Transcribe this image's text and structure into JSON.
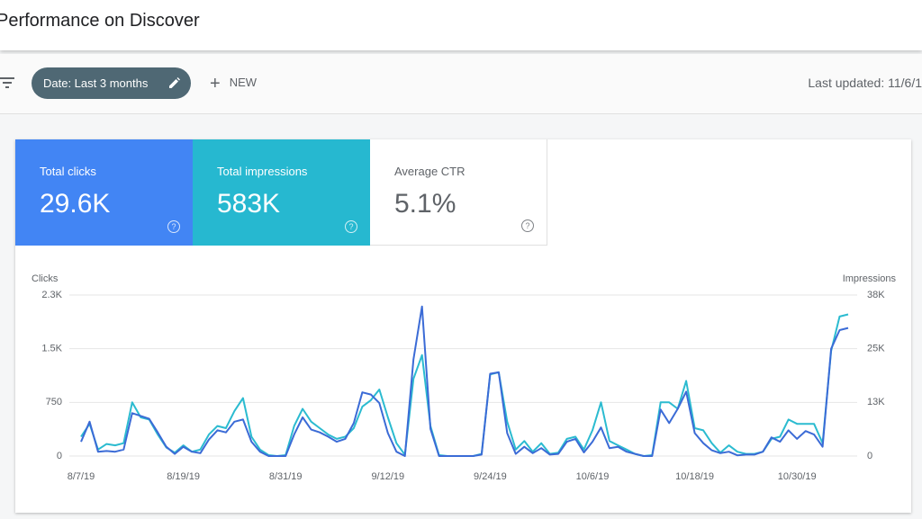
{
  "header": {
    "title": "Performance on Discover"
  },
  "toolbar": {
    "date_filter": "Date: Last 3 months",
    "new_button": "NEW",
    "last_updated": "Last updated: 11/6/1"
  },
  "metrics": [
    {
      "label": "Total clicks",
      "value": "29.6K",
      "color": "#4285f4"
    },
    {
      "label": "Total impressions",
      "value": "583K",
      "color": "#26b8d0"
    },
    {
      "label": "Average CTR",
      "value": "5.1%"
    }
  ],
  "chart_data": {
    "type": "line",
    "categories": [
      "8/7/19",
      null,
      null,
      null,
      null,
      null,
      null,
      null,
      null,
      null,
      null,
      null,
      "8/19/19",
      null,
      null,
      null,
      null,
      null,
      null,
      null,
      null,
      null,
      null,
      null,
      "8/31/19",
      null,
      null,
      null,
      null,
      null,
      null,
      null,
      null,
      null,
      null,
      null,
      "9/12/19",
      null,
      null,
      null,
      null,
      null,
      null,
      null,
      null,
      null,
      null,
      null,
      "9/24/19",
      null,
      null,
      null,
      null,
      null,
      null,
      null,
      null,
      null,
      null,
      null,
      "10/6/19",
      null,
      null,
      null,
      null,
      null,
      null,
      null,
      null,
      null,
      null,
      null,
      "10/18/19",
      null,
      null,
      null,
      null,
      null,
      null,
      null,
      null,
      null,
      null,
      null,
      "10/30/19",
      null,
      null,
      null,
      null,
      null,
      null
    ],
    "series": [
      {
        "name": "Clicks",
        "color": "#3b6bd6",
        "values": [
          200,
          480,
          60,
          70,
          60,
          90,
          600,
          560,
          520,
          330,
          130,
          30,
          130,
          60,
          40,
          230,
          360,
          330,
          480,
          510,
          200,
          60,
          0,
          0,
          0,
          300,
          540,
          370,
          330,
          270,
          200,
          240,
          460,
          890,
          860,
          740,
          320,
          60,
          0,
          1350,
          2090,
          380,
          0,
          0,
          0,
          0,
          0,
          20,
          1150,
          1170,
          320,
          30,
          130,
          40,
          110,
          20,
          30,
          200,
          240,
          50,
          200,
          400,
          110,
          130,
          60,
          30,
          0,
          0,
          650,
          460,
          660,
          900,
          320,
          180,
          80,
          40,
          60,
          10,
          20,
          20,
          60,
          260,
          200,
          360,
          240,
          350,
          300,
          130,
          1500,
          1760,
          1790
        ]
      },
      {
        "name": "Impressions",
        "color": "#2bbbd0",
        "axis": "y2",
        "values": [
          4500,
          7500,
          1500,
          2800,
          2500,
          3000,
          12500,
          9000,
          8500,
          5000,
          2000,
          800,
          2500,
          1000,
          1500,
          5000,
          7000,
          6500,
          10500,
          13500,
          4500,
          1500,
          200,
          0,
          200,
          7000,
          11000,
          8000,
          6500,
          5000,
          4000,
          4500,
          6500,
          11500,
          13000,
          15500,
          9000,
          3000,
          300,
          18000,
          23500,
          7000,
          200,
          0,
          0,
          0,
          0,
          500,
          19000,
          19500,
          8000,
          1500,
          3500,
          1000,
          3000,
          500,
          800,
          4000,
          4500,
          1500,
          6000,
          12500,
          3500,
          2500,
          1500,
          500,
          0,
          200,
          12500,
          12500,
          11000,
          17500,
          6500,
          6000,
          3000,
          800,
          2500,
          1000,
          500,
          500,
          1000,
          4000,
          4500,
          8500,
          7500,
          7500,
          7500,
          3000,
          24500,
          32500,
          33000
        ]
      }
    ],
    "ylim": [
      0,
      2250
    ],
    "yticks": [
      0,
      750,
      {
        "value": 1500,
        "label": "1.5K"
      },
      {
        "value": 2250,
        "label": "2.3K"
      }
    ],
    "y2lim": [
      0,
      37500
    ],
    "y2ticks": [
      0,
      {
        "value": 12500,
        "label": "13K"
      },
      {
        "value": 25000,
        "label": "25K"
      },
      {
        "value": 37500,
        "label": "38K"
      }
    ],
    "grid": true
  }
}
